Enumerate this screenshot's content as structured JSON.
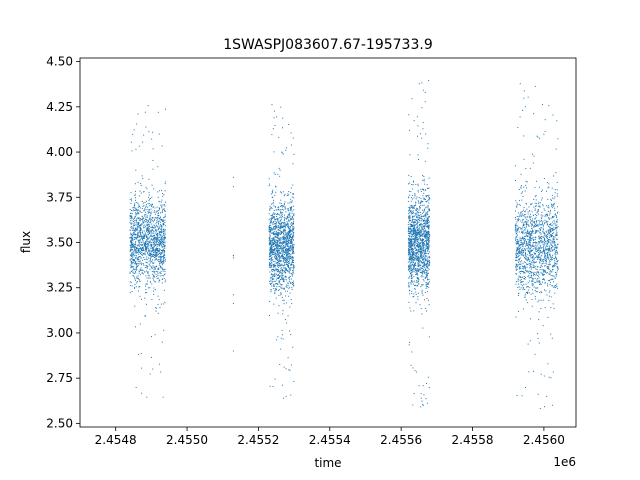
{
  "chart_data": {
    "type": "scatter",
    "title": "1SWASPJ083607.67-195733.9",
    "xlabel": "time",
    "ylabel": "flux",
    "x_offset_label": "1e6",
    "xlim": [
      2.4547,
      2.45609
    ],
    "ylim": [
      2.48,
      4.52
    ],
    "x_ticks": [
      2.4548,
      2.455,
      2.4552,
      2.4554,
      2.4556,
      2.4558,
      2.456
    ],
    "x_tick_labels": [
      "2.4548",
      "2.4550",
      "2.4552",
      "2.4554",
      "2.4556",
      "2.4558",
      "2.4560"
    ],
    "y_ticks": [
      2.5,
      2.75,
      3.0,
      3.25,
      3.5,
      3.75,
      4.0,
      4.25,
      4.5
    ],
    "y_tick_labels": [
      "2.50",
      "2.75",
      "3.00",
      "3.25",
      "3.50",
      "3.75",
      "4.00",
      "4.25",
      "4.50"
    ],
    "grid": false,
    "legend": "none",
    "marker_color": "#1f77b4",
    "clusters": [
      {
        "x_start": 2.45484,
        "x_end": 2.45494,
        "y_center": 3.5,
        "y_spread": 0.12,
        "y_min": 2.64,
        "y_max": 4.26
      },
      {
        "x_start": 2.45513,
        "x_end": 2.45513,
        "y_center": 3.4,
        "y_spread": 0.4,
        "y_min": 2.85,
        "y_max": 3.86
      },
      {
        "x_start": 2.45523,
        "x_end": 2.4553,
        "y_center": 3.48,
        "y_spread": 0.12,
        "y_min": 2.62,
        "y_max": 4.3
      },
      {
        "x_start": 2.45562,
        "x_end": 2.45568,
        "y_center": 3.5,
        "y_spread": 0.13,
        "y_min": 2.57,
        "y_max": 4.4
      },
      {
        "x_start": 2.45592,
        "x_end": 2.45604,
        "y_center": 3.48,
        "y_spread": 0.13,
        "y_min": 2.56,
        "y_max": 4.42
      }
    ]
  }
}
